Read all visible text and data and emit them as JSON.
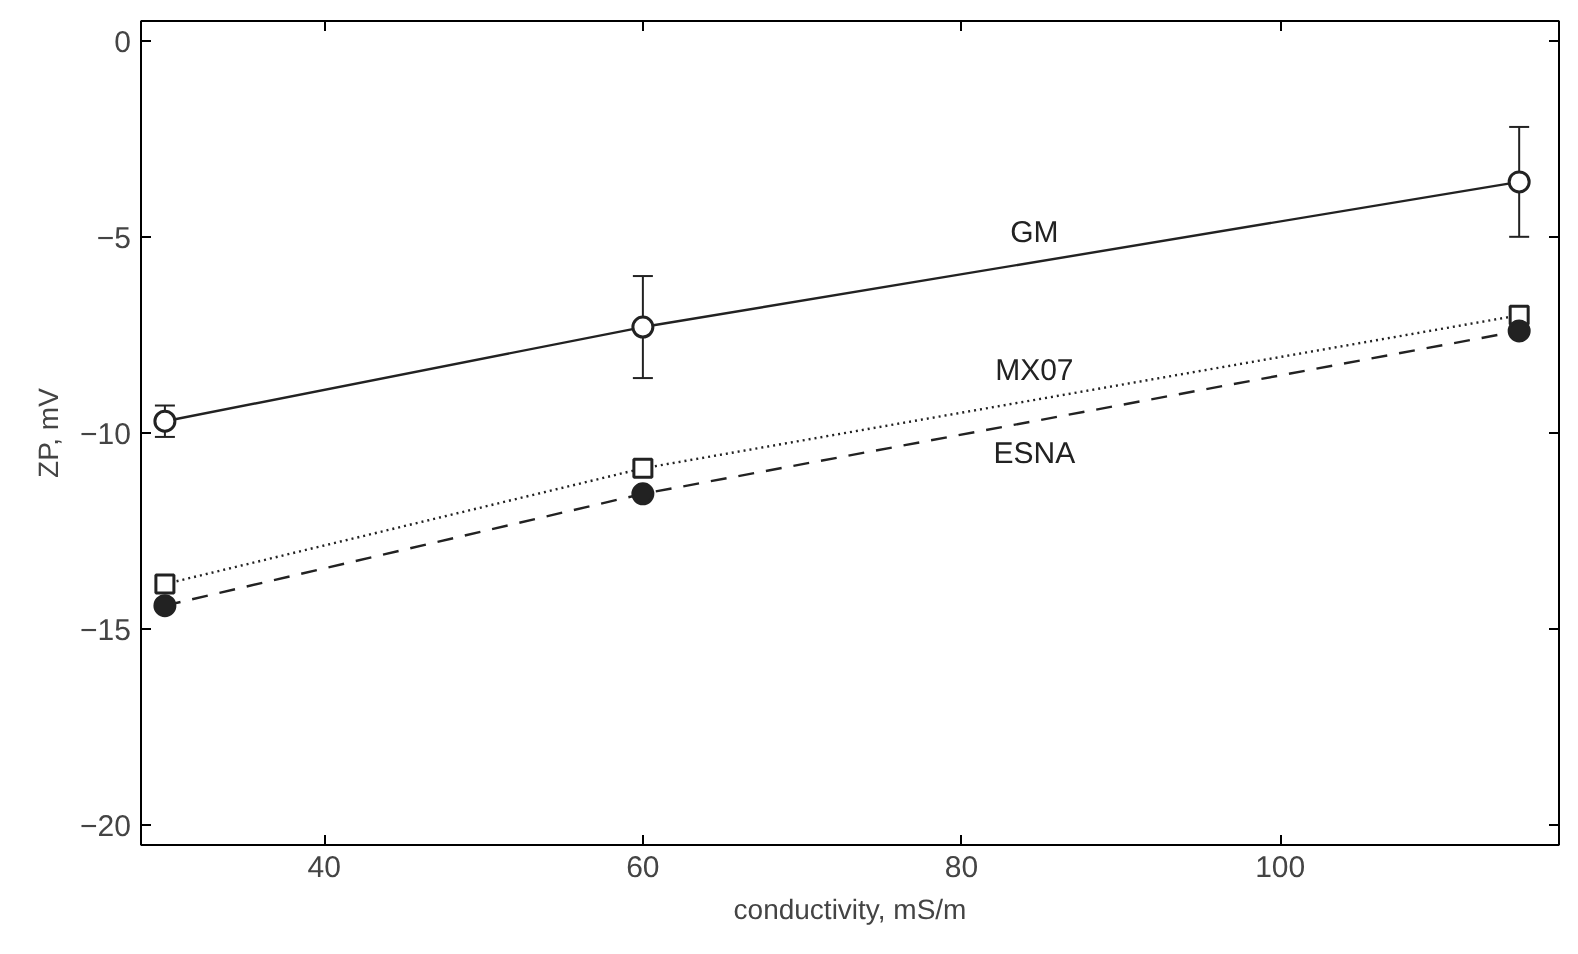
{
  "chart_data": {
    "type": "line",
    "xlabel": "conductivity, mS/m",
    "ylabel": "ZP, mV",
    "x": [
      30,
      60,
      115
    ],
    "series": [
      {
        "name": "GM",
        "color": "#222222",
        "values": [
          -9.7,
          -7.3,
          -3.6
        ],
        "errors": [
          0.4,
          1.3,
          1.4
        ],
        "marker": "circle",
        "line_style": "solid"
      },
      {
        "name": "MX07",
        "color": "#222222",
        "values": [
          -13.85,
          -10.9,
          -7.0
        ],
        "marker": "square",
        "line_style": "dotted"
      },
      {
        "name": "ESNA",
        "color": "#222222",
        "values": [
          -14.4,
          -11.55,
          -7.4
        ],
        "marker": "circle",
        "line_style": "dashed"
      }
    ],
    "xlim": [
      28.5,
      117.5
    ],
    "ylim": [
      -20.5,
      0.5
    ],
    "xticks": [
      40,
      60,
      80,
      100
    ],
    "yticks": [
      0,
      -5,
      -10,
      -15,
      -20
    ],
    "grid": false
  }
}
